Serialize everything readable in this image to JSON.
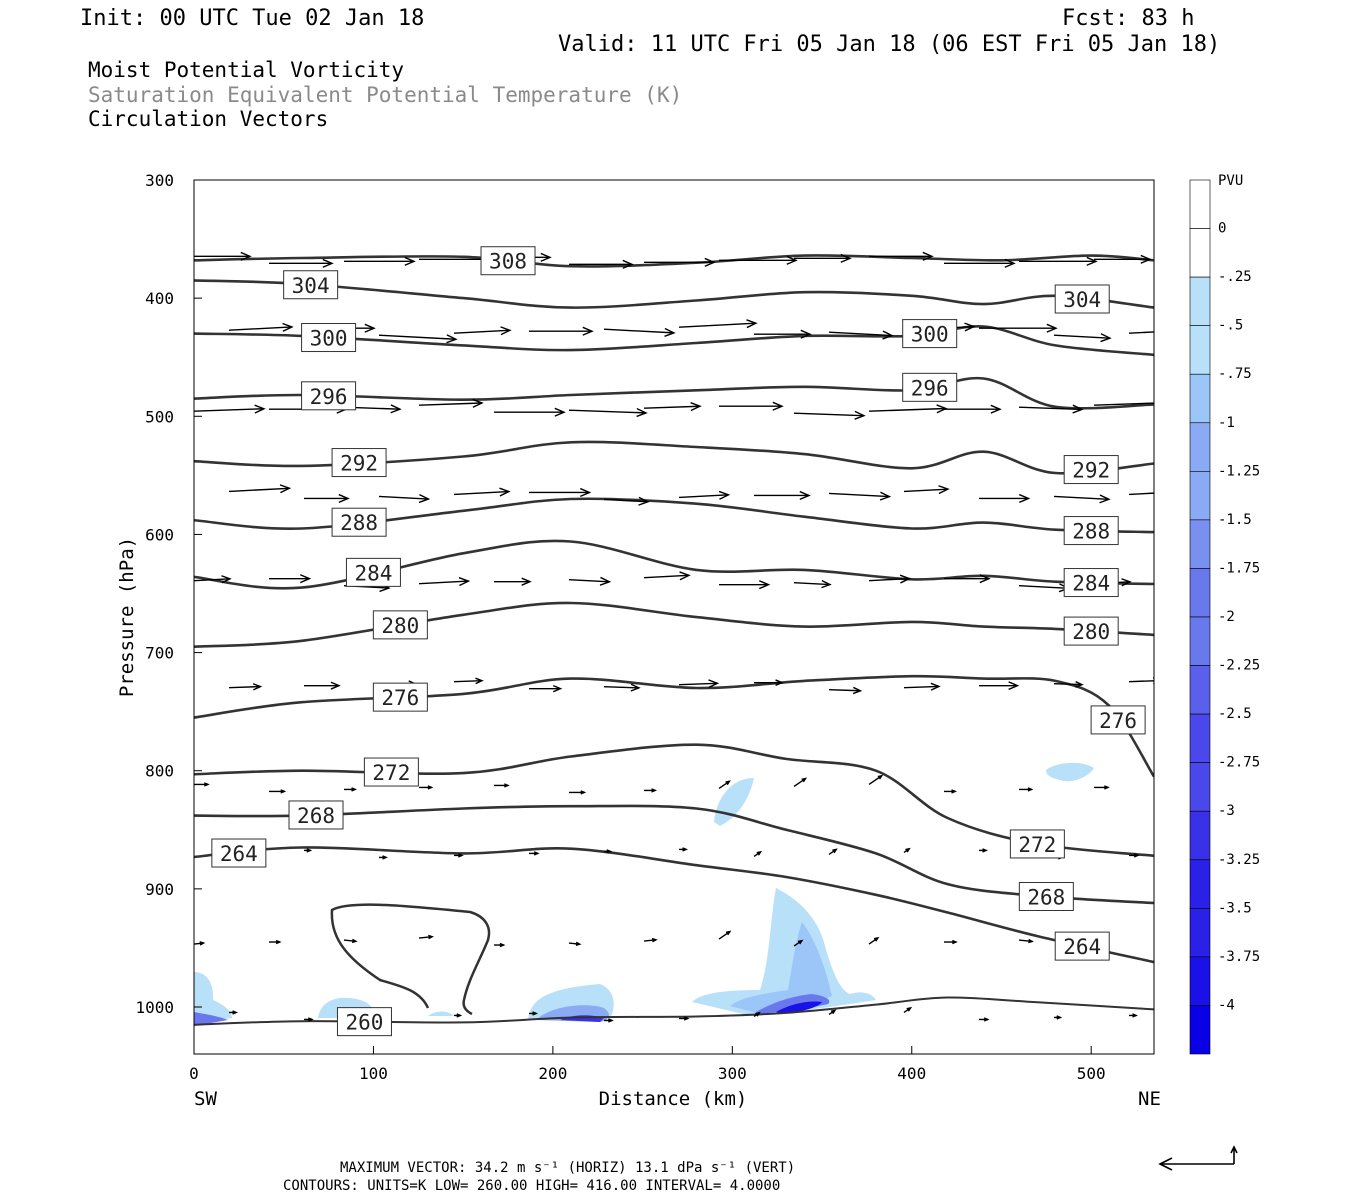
{
  "header": {
    "init": "Init: 00 UTC Tue 02 Jan 18",
    "fcst": "Fcst:   83 h",
    "valid": "Valid: 11 UTC Fri 05 Jan 18 (06 EST Fri 05 Jan 18)"
  },
  "titles": {
    "line1": "Moist Potential Vorticity",
    "line2": "Saturation Equivalent Potential Temperature (K)",
    "line3": "Circulation Vectors"
  },
  "colors": {
    "title_gray": "#8a8a8a",
    "contour": "#333333",
    "pv_shades": [
      "#b8e0f8",
      "#9cc6f8",
      "#8aaaf4",
      "#7a90f0",
      "#6a78ee",
      "#5a60ec",
      "#4a48ea",
      "#3a30e8",
      "#2a20e8",
      "#1a10e8",
      "#0a00e6"
    ]
  },
  "chart_data": {
    "type": "cross-section",
    "xlabel": "Distance (km)",
    "ylabel": "Pressure (hPa)",
    "x_ticks": [
      "0",
      "100",
      "200",
      "300",
      "400",
      "500"
    ],
    "x_tick_values": [
      0,
      100,
      200,
      300,
      400,
      500
    ],
    "y_ticks": [
      "300",
      "400",
      "500",
      "600",
      "700",
      "800",
      "900",
      "1000"
    ],
    "y_tick_values": [
      300,
      400,
      500,
      600,
      700,
      800,
      900,
      1000
    ],
    "xlim": [
      0,
      535
    ],
    "ylim": [
      1040,
      300
    ],
    "y_scale": "pressure",
    "left_end": "SW",
    "right_end": "NE",
    "colorbar": {
      "label": "PVU",
      "ticks": [
        "0",
        "-.25",
        "-.5",
        "-.75",
        "-1",
        "-1.25",
        "-1.5",
        "-1.75",
        "-2",
        "-2.25",
        "-2.5",
        "-2.75",
        "-3",
        "-3.25",
        "-3.5",
        "-3.75",
        "-4"
      ]
    },
    "theta_es_contours": [
      {
        "value": 308,
        "label": "308",
        "points": [
          [
            0,
            368
          ],
          [
            60,
            366
          ],
          [
            150,
            365
          ],
          [
            210,
            373
          ],
          [
            280,
            370
          ],
          [
            340,
            364
          ],
          [
            400,
            366
          ],
          [
            450,
            368
          ],
          [
            500,
            364
          ],
          [
            535,
            368
          ]
        ]
      },
      {
        "value": 304,
        "label": "304",
        "points": [
          [
            0,
            385
          ],
          [
            60,
            388
          ],
          [
            150,
            400
          ],
          [
            210,
            408
          ],
          [
            280,
            402
          ],
          [
            340,
            395
          ],
          [
            400,
            398
          ],
          [
            440,
            405
          ],
          [
            480,
            398
          ],
          [
            535,
            408
          ]
        ]
      },
      {
        "value": 300,
        "label": "300",
        "points": [
          [
            0,
            430
          ],
          [
            60,
            432
          ],
          [
            150,
            440
          ],
          [
            210,
            444
          ],
          [
            280,
            438
          ],
          [
            340,
            432
          ],
          [
            400,
            432
          ],
          [
            440,
            424
          ],
          [
            480,
            440
          ],
          [
            535,
            448
          ]
        ]
      },
      {
        "value": 296,
        "label": "296",
        "points": [
          [
            0,
            485
          ],
          [
            60,
            482
          ],
          [
            150,
            486
          ],
          [
            210,
            482
          ],
          [
            280,
            478
          ],
          [
            340,
            475
          ],
          [
            400,
            478
          ],
          [
            440,
            468
          ],
          [
            480,
            492
          ],
          [
            535,
            490
          ]
        ]
      },
      {
        "value": 292,
        "label": "292",
        "points": [
          [
            0,
            538
          ],
          [
            60,
            542
          ],
          [
            150,
            534
          ],
          [
            210,
            522
          ],
          [
            280,
            526
          ],
          [
            340,
            532
          ],
          [
            400,
            544
          ],
          [
            440,
            530
          ],
          [
            480,
            548
          ],
          [
            535,
            540
          ]
        ]
      },
      {
        "value": 288,
        "label": "288",
        "points": [
          [
            0,
            588
          ],
          [
            60,
            595
          ],
          [
            150,
            580
          ],
          [
            210,
            570
          ],
          [
            280,
            574
          ],
          [
            340,
            585
          ],
          [
            400,
            595
          ],
          [
            440,
            590
          ],
          [
            480,
            596
          ],
          [
            535,
            598
          ]
        ]
      },
      {
        "value": 284,
        "label": "284",
        "points": [
          [
            0,
            636
          ],
          [
            60,
            645
          ],
          [
            150,
            616
          ],
          [
            210,
            606
          ],
          [
            280,
            630
          ],
          [
            340,
            630
          ],
          [
            400,
            638
          ],
          [
            440,
            635
          ],
          [
            480,
            640
          ],
          [
            535,
            642
          ]
        ]
      },
      {
        "value": 280,
        "label": "280",
        "points": [
          [
            0,
            695
          ],
          [
            60,
            690
          ],
          [
            150,
            668
          ],
          [
            210,
            658
          ],
          [
            280,
            670
          ],
          [
            340,
            678
          ],
          [
            400,
            674
          ],
          [
            440,
            678
          ],
          [
            480,
            680
          ],
          [
            535,
            685
          ]
        ]
      },
      {
        "value": 276,
        "label": "276",
        "points": [
          [
            0,
            755
          ],
          [
            60,
            742
          ],
          [
            150,
            735
          ],
          [
            210,
            722
          ],
          [
            280,
            730
          ],
          [
            340,
            724
          ],
          [
            400,
            720
          ],
          [
            440,
            722
          ],
          [
            480,
            724
          ],
          [
            510,
            745
          ],
          [
            535,
            805
          ]
        ]
      },
      {
        "value": 272,
        "label": "272",
        "points": [
          [
            0,
            803
          ],
          [
            60,
            800
          ],
          [
            150,
            802
          ],
          [
            210,
            788
          ],
          [
            280,
            778
          ],
          [
            330,
            790
          ],
          [
            380,
            800
          ],
          [
            420,
            840
          ],
          [
            470,
            862
          ],
          [
            535,
            872
          ]
        ]
      },
      {
        "value": 268,
        "label": "268",
        "points": [
          [
            0,
            838
          ],
          [
            60,
            838
          ],
          [
            150,
            832
          ],
          [
            210,
            830
          ],
          [
            280,
            832
          ],
          [
            330,
            850
          ],
          [
            380,
            870
          ],
          [
            420,
            896
          ],
          [
            470,
            906
          ],
          [
            535,
            912
          ]
        ]
      },
      {
        "value": 264,
        "label": "264",
        "points": [
          [
            0,
            873
          ],
          [
            60,
            865
          ],
          [
            150,
            870
          ],
          [
            210,
            866
          ],
          [
            280,
            880
          ],
          [
            330,
            890
          ],
          [
            380,
            905
          ],
          [
            420,
            920
          ],
          [
            470,
            940
          ],
          [
            535,
            962
          ]
        ]
      },
      {
        "value": 260,
        "label": "260",
        "points": [
          [
            0,
            1015
          ],
          [
            60,
            1012
          ],
          [
            150,
            1013
          ],
          [
            210,
            1009
          ],
          [
            280,
            1008
          ],
          [
            330,
            1005
          ],
          [
            380,
            998
          ],
          [
            420,
            992
          ],
          [
            470,
            996
          ],
          [
            535,
            1002
          ]
        ]
      }
    ]
  },
  "footer": {
    "max_vector": "MAXIMUM VECTOR:  34.2 m s⁻¹ (HORIZ)         13.1 dPa s⁻¹ (VERT)",
    "contours": "CONTOURS:  UNITS=K  LOW=   260.00       HIGH=  416.00       INTERVAL=    4.0000"
  }
}
